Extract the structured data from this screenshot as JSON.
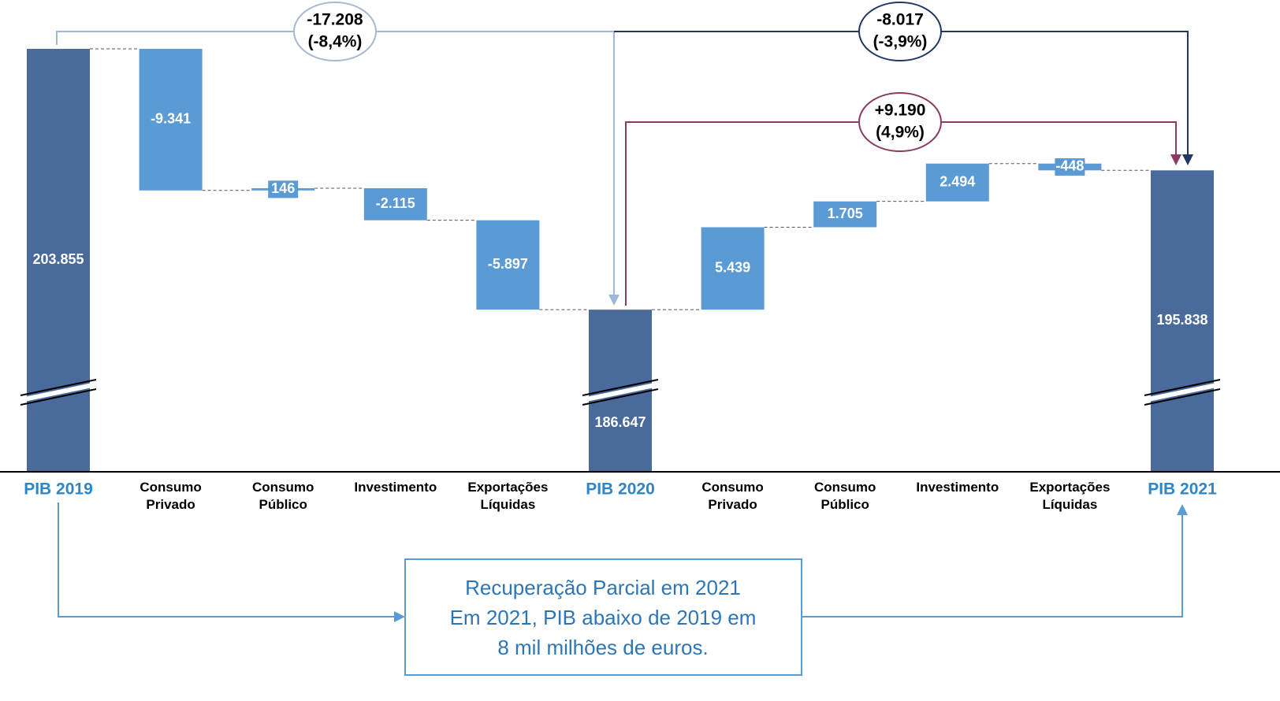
{
  "chart_data": {
    "type": "waterfall",
    "categories": [
      "PIB 2019",
      "Consumo Privado",
      "Consumo Público",
      "Investimento",
      "Exportações Líquidas",
      "PIB 2020",
      "Consumo Privado",
      "Consumo Público",
      "Investimento",
      "Exportações Líquidas",
      "PIB 2021"
    ],
    "measure": [
      "total",
      "relative",
      "relative",
      "relative",
      "relative",
      "total",
      "relative",
      "relative",
      "relative",
      "relative",
      "total"
    ],
    "values": [
      203855,
      -9341,
      146,
      -2115,
      -5897,
      186647,
      5439,
      1705,
      2494,
      -448,
      195838
    ],
    "value_labels": [
      "203.855",
      "-9.341",
      "146",
      "-2.115",
      "-5.897",
      "186.647",
      "5.439",
      "1.705",
      "2.494",
      "-448",
      "195.838"
    ],
    "total_color": "#4a6a9b",
    "delta_color": "#5b9bd5",
    "ylim": [
      176000,
      205000
    ],
    "annotations": [
      {
        "text": "-17.208",
        "detail": "(-8,4%)"
      },
      {
        "text": "-8.017",
        "detail": "(-3,9%)"
      },
      {
        "text": "+9.190",
        "detail": "(4,9%)"
      }
    ],
    "note": [
      "Recuperação Parcial em 2021",
      "Em 2021, PIB abaixo de 2019 em",
      "8 mil milhões de euros."
    ]
  }
}
